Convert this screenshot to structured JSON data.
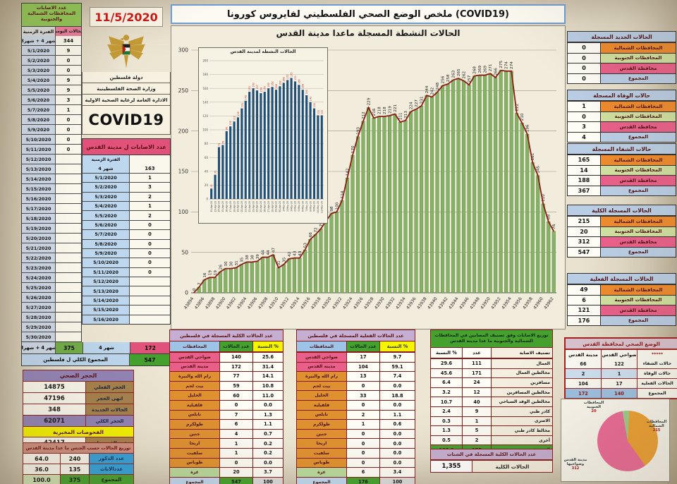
{
  "page": {
    "title": "ملخص الوضع الصحي الفلسطيني لفايروس كورونا (COVID19)",
    "date": "11/5/2020",
    "country": "دولة فلسطين",
    "ministry": "وزارة الصحة الفلسطينية",
    "directorate": "الادارة العامة لرعاية الصحية الاولية",
    "covid_label": "COVID19"
  },
  "left_daily": {
    "title": "عدد الاصابات المحافظات الشمالية والجنوبية",
    "col_period": "الفترة الزمنية",
    "col_daily": "الحالات اليومية",
    "rows": [
      {
        "d": "شهر 4 + شهر3",
        "v": "344"
      },
      {
        "d": "5/1/2020",
        "v": "9"
      },
      {
        "d": "5/2/2020",
        "v": "0"
      },
      {
        "d": "5/3/2020",
        "v": "0"
      },
      {
        "d": "5/4/2020",
        "v": "9"
      },
      {
        "d": "5/5/2020",
        "v": "9"
      },
      {
        "d": "5/6/2020",
        "v": "3"
      },
      {
        "d": "5/7/2020",
        "v": "1"
      },
      {
        "d": "5/8/2020",
        "v": "0"
      },
      {
        "d": "5/9/2020",
        "v": "0"
      },
      {
        "d": "5/10/2020",
        "v": "0"
      },
      {
        "d": "5/11/2020",
        "v": "0"
      },
      {
        "d": "5/12/2020",
        "v": ""
      },
      {
        "d": "5/13/2020",
        "v": ""
      },
      {
        "d": "5/14/2020",
        "v": ""
      },
      {
        "d": "5/15/2020",
        "v": ""
      },
      {
        "d": "5/16/2020",
        "v": ""
      },
      {
        "d": "5/17/2020",
        "v": ""
      },
      {
        "d": "5/18/2020",
        "v": ""
      },
      {
        "d": "5/19/2020",
        "v": ""
      },
      {
        "d": "5/20/2020",
        "v": ""
      },
      {
        "d": "5/21/2020",
        "v": ""
      },
      {
        "d": "5/22/2020",
        "v": ""
      },
      {
        "d": "5/23/2020",
        "v": ""
      },
      {
        "d": "5/24/2020",
        "v": ""
      },
      {
        "d": "5/25/2020",
        "v": ""
      },
      {
        "d": "5/26/2020",
        "v": ""
      },
      {
        "d": "5/27/2020",
        "v": ""
      },
      {
        "d": "5/28/2020",
        "v": ""
      },
      {
        "d": "5/29/2020",
        "v": ""
      },
      {
        "d": "5/30/2020",
        "v": ""
      }
    ]
  },
  "jerusalem_daily": {
    "title": "عدد الاصابات ل مدينة القدس",
    "col_period": "الفترة الزمنية",
    "rows": [
      {
        "d": "شهر 4",
        "v": "163"
      },
      {
        "d": "5/1/2020",
        "v": "1"
      },
      {
        "d": "5/2/2020",
        "v": "3"
      },
      {
        "d": "5/3/2020",
        "v": "2"
      },
      {
        "d": "5/4/2020",
        "v": "1"
      },
      {
        "d": "5/5/2020",
        "v": "2"
      },
      {
        "d": "5/6/2020",
        "v": "0"
      },
      {
        "d": "5/7/2020",
        "v": "0"
      },
      {
        "d": "5/8/2020",
        "v": "0"
      },
      {
        "d": "5/9/2020",
        "v": "0"
      },
      {
        "d": "5/10/2020",
        "v": "0"
      },
      {
        "d": "5/11/2020",
        "v": "0"
      },
      {
        "d": "5/12/2020",
        "v": ""
      },
      {
        "d": "5/13/2020",
        "v": ""
      },
      {
        "d": "5/14/2020",
        "v": ""
      },
      {
        "d": "5/15/2020",
        "v": ""
      },
      {
        "d": "5/16/2020",
        "v": ""
      }
    ]
  },
  "left_summary": {
    "m43_label": "شهر 4 + شهر3",
    "m43_value": "375",
    "m4_label": "شهر 4",
    "m4_value": "172",
    "total_label": "المجموع الكلي ل فلسطين",
    "total_value": "547"
  },
  "quarantine": {
    "title": "الحجر الصحي",
    "rows": [
      {
        "label": "الحجر الفعلي",
        "v": "14875",
        "purple": false
      },
      {
        "label": "انهى الحجر",
        "v": "47196",
        "purple": false
      },
      {
        "label": "الحالات الجديدة",
        "v": "348",
        "purple": false
      },
      {
        "label": "الحجر الكلي",
        "v": "62071",
        "purple": true
      }
    ],
    "lab_title": "الفحوصات المخبرية",
    "lab_label": "عدد الفحوصات",
    "lab_value": "42417"
  },
  "gender": {
    "title": "توزيع الحالات حسب الجنس ما عدا مدينة القدس",
    "rows": [
      {
        "label": "عدد الذكور",
        "n": "240",
        "pct": "64.0",
        "total": false
      },
      {
        "label": "عددالاناث",
        "n": "135",
        "pct": "36.0",
        "total": false
      },
      {
        "label": "المجموع",
        "n": "375",
        "pct": "100.0",
        "total": true
      }
    ]
  },
  "right_tables": [
    {
      "title": "الحالات الجديد المسجلة",
      "rows": [
        {
          "label": "المحافظات الشمالية",
          "v": "0",
          "c": "#ed8a2e"
        },
        {
          "label": "المحافظات الجنوبية",
          "v": "0",
          "c": "#cfe0a0"
        },
        {
          "label": "محافظة القدس",
          "v": "0",
          "c": "#e8608a"
        },
        {
          "label": "المجموع",
          "v": "0",
          "c": "#b9cde4"
        }
      ]
    },
    {
      "title": "حالات الوفاة المسجلة",
      "rows": [
        {
          "label": "المحافظات الشمالية",
          "v": "1",
          "c": "#ed8a2e"
        },
        {
          "label": "المحافظات الجنوبية",
          "v": "0",
          "c": "#cfe0a0"
        },
        {
          "label": "محافظة القدس",
          "v": "3",
          "c": "#e8608a"
        },
        {
          "label": "المجموع",
          "v": "4",
          "c": "#b9cde4"
        }
      ]
    },
    {
      "title": "حالات الشفاء المسجلة",
      "rows": [
        {
          "label": "المحافظات الشمالية",
          "v": "165",
          "c": "#ed8a2e"
        },
        {
          "label": "المحافظات الجنوبية",
          "v": "14",
          "c": "#cfe0a0"
        },
        {
          "label": "محافظة القدس",
          "v": "188",
          "c": "#e8608a"
        },
        {
          "label": "المجموع",
          "v": "367",
          "c": "#b9cde4"
        }
      ]
    },
    {
      "title": "الحالات المسجلة الكلية",
      "rows": [
        {
          "label": "المحافظات الشمالية",
          "v": "215",
          "c": "#ed8a2e"
        },
        {
          "label": "المحافظات الجنوبية",
          "v": "20",
          "c": "#cfe0a0"
        },
        {
          "label": "محافظة القدس",
          "v": "312",
          "c": "#e8608a"
        },
        {
          "label": "المجموع",
          "v": "547",
          "c": "#b9cde4"
        }
      ]
    },
    {
      "title": "الحالات المسجلة الفعلية",
      "rows": [
        {
          "label": "المحافظات الشمالية",
          "v": "49",
          "c": "#ed8a2e"
        },
        {
          "label": "المحافظات الجنوبية",
          "v": "6",
          "c": "#cfe0a0"
        },
        {
          "label": "محافظة القدس",
          "v": "121",
          "c": "#e8608a"
        },
        {
          "label": "المجموع",
          "v": "176",
          "c": "#b9cde4"
        }
      ]
    }
  ],
  "jerusalem_status": {
    "title": "الوضع الصحي لمحافظة القدس",
    "col_stars": "*****",
    "col_suburbs": "ضواحي القدس",
    "col_city": "مدينة القدس",
    "rows": [
      {
        "label": "حالات الشفاء",
        "suburbs": "122",
        "city": "66",
        "bg": "#fdfcf5"
      },
      {
        "label": "حالات الوفاة",
        "suburbs": "1",
        "city": "2",
        "bg": "#cfe2f3"
      },
      {
        "label": "الحالات الفعلية",
        "suburbs": "17",
        "city": "104",
        "bg": "#fdfcf5"
      },
      {
        "label": "المجموع",
        "suburbs": "140",
        "city": "172",
        "bg": "#9dc3e6"
      }
    ]
  },
  "bottom_total_table": {
    "title": "عدد الحالات الكلية المسجلة في فلسطين",
    "col_gov": "المحافظات",
    "col_n": "عدد الحالات",
    "col_pct": "النسبة %",
    "rows": [
      {
        "label": "ضواحي القدس",
        "n": "140",
        "pct": "25.6",
        "c": "pink"
      },
      {
        "label": "مدينة القدس",
        "n": "172",
        "pct": "31.4",
        "c": "pink"
      },
      {
        "label": "رام الله والبيرة",
        "n": "77",
        "pct": "14.1",
        "c": "orange"
      },
      {
        "label": "بيت لحم",
        "n": "59",
        "pct": "10.8",
        "c": "orange"
      },
      {
        "label": "الخليل",
        "n": "60",
        "pct": "11.0",
        "c": "orange"
      },
      {
        "label": "قلقيلية",
        "n": "0",
        "pct": "0.0",
        "c": "orange"
      },
      {
        "label": "نابلس",
        "n": "7",
        "pct": "1.3",
        "c": "orange"
      },
      {
        "label": "طولكرم",
        "n": "6",
        "pct": "1.1",
        "c": "orange"
      },
      {
        "label": "جنين",
        "n": "4",
        "pct": "0.7",
        "c": "orange"
      },
      {
        "label": "اريحا",
        "n": "1",
        "pct": "0.2",
        "c": "orange"
      },
      {
        "label": "سلفيت",
        "n": "1",
        "pct": "0.2",
        "c": "orange"
      },
      {
        "label": "طوباس",
        "n": "0",
        "pct": "0.0",
        "c": "orange"
      },
      {
        "label": "غزة",
        "n": "20",
        "pct": "3.7",
        "c": "lgreen"
      }
    ],
    "total_label": "المجموع",
    "total_n": "547",
    "total_pct": "100"
  },
  "bottom_active_table": {
    "title": "عدد الحالات الفعلية المسجلة في فلسطين",
    "col_gov": "المحافظات",
    "col_n": "عدد الحالات",
    "col_pct": "النسبة %",
    "rows": [
      {
        "label": "ضواحي القدس",
        "n": "17",
        "pct": "9.7",
        "c": "pink"
      },
      {
        "label": "مدينة القدس",
        "n": "104",
        "pct": "59.1",
        "c": "pink"
      },
      {
        "label": "رام الله والبيرة",
        "n": "13",
        "pct": "7.4",
        "c": "orange"
      },
      {
        "label": "بيت لحم",
        "n": "0",
        "pct": "0.0",
        "c": "orange"
      },
      {
        "label": "الخليل",
        "n": "33",
        "pct": "18.8",
        "c": "orange"
      },
      {
        "label": "قلقيلية",
        "n": "0",
        "pct": "0.0",
        "c": "orange"
      },
      {
        "label": "نابلس",
        "n": "2",
        "pct": "1.1",
        "c": "orange"
      },
      {
        "label": "طولكرم",
        "n": "1",
        "pct": "0.6",
        "c": "orange"
      },
      {
        "label": "جنين",
        "n": "0",
        "pct": "0.0",
        "c": "orange"
      },
      {
        "label": "اريحا",
        "n": "0",
        "pct": "0.0",
        "c": "orange"
      },
      {
        "label": "سلفيت",
        "n": "0",
        "pct": "0.0",
        "c": "orange"
      },
      {
        "label": "طوباس",
        "n": "0",
        "pct": "0.0",
        "c": "orange"
      },
      {
        "label": "غزة",
        "n": "6",
        "pct": "3.4",
        "c": "lgreen"
      }
    ],
    "total_label": "المجموع",
    "total_n": "176",
    "total_pct": "100"
  },
  "classification_table": {
    "title": "توزيع الاصابات وفق تصنيف المصابين في المحافظات الشمالية والجنوبية ما عدا مدينة القدس",
    "col_type": "تصنيف الاصابة",
    "col_n": "عدد",
    "col_pct": "النسبة %",
    "rows": [
      {
        "label": "العمال",
        "n": "111",
        "pct": "29.6"
      },
      {
        "label": "مخالطين العمال",
        "n": "171",
        "pct": "45.6"
      },
      {
        "label": "مسافرين",
        "n": "24",
        "pct": "6.4"
      },
      {
        "label": "مخالطين المسافرين",
        "n": "12",
        "pct": "3.2"
      },
      {
        "label": "مخالطين الوفد السياحي",
        "n": "40",
        "pct": "10.7"
      },
      {
        "label": "كادر طبي",
        "n": "9",
        "pct": "2.4"
      },
      {
        "label": "الاسرى",
        "n": "1",
        "pct": "0.3"
      },
      {
        "label": "مخالط كادر طبي",
        "n": "5",
        "pct": "1.3"
      },
      {
        "label": "أخرى",
        "n": "2",
        "pct": "0.5"
      }
    ],
    "total_label": "المجموع",
    "total_n": "375",
    "total_pct": "100.0"
  },
  "diaspora": {
    "title": "عدد الحالات الكلية المسجلة في الشتات",
    "label": "الحالات الكلية",
    "value": "1,355"
  },
  "chart_data": [
    {
      "type": "bar",
      "name": "active-cases-excluding-jerusalem",
      "title": "الحالات النشطة المسجلة ماعدا مدينة القدس",
      "x_start_serial": 43894,
      "x_end_serial": 43962,
      "xtick_step": 2,
      "ylim": [
        0,
        300
      ],
      "ytick_step": 50,
      "grid": true,
      "bar_color": "#85b264",
      "line_color": "#8b1f14",
      "values": [
        0,
        7,
        16,
        19,
        19,
        26,
        30,
        30,
        31,
        35,
        38,
        38,
        39,
        44,
        44,
        47,
        31,
        35,
        42,
        43,
        43,
        53,
        66,
        72,
        79,
        89,
        98,
        100,
        114,
        142,
        170,
        193,
        212,
        229,
        216,
        218,
        218,
        219,
        221,
        211,
        213,
        224,
        227,
        231,
        244,
        242,
        248,
        256,
        258,
        263,
        265,
        262,
        257,
        268,
        269,
        269,
        271,
        266,
        275,
        274,
        274,
        222,
        210,
        196,
        161,
        145,
        110,
        88,
        76
      ]
    },
    {
      "type": "bar",
      "name": "active-cases-jerusalem-city",
      "title": "الحالات النشطة لمدينة القدس",
      "ylim": [
        0,
        200
      ],
      "ytick_step": 20,
      "bar_color": "#1f4e79",
      "values_approximate": true,
      "categories": [
        "12-Apr-20",
        "13-Apr-20",
        "14-Apr-20",
        "15-Apr-20",
        "16-Apr-20",
        "17-Apr-20",
        "18-Apr-20",
        "19-Apr-20",
        "20-Apr-20",
        "21-Apr-20",
        "22-Apr-20",
        "23-Apr-20",
        "24-Apr-20",
        "25-Apr-20",
        "26-Apr-20",
        "27-Apr-20",
        "28-Apr-20",
        "29-Apr-20",
        "30-Apr-20",
        "1-May-20",
        "2-May-20",
        "3-May-20",
        "4-May-20",
        "5-May-20",
        "6-May-20",
        "7-May-20",
        "8-May-20",
        "9-May-20",
        "10-May-20",
        "11-May-20"
      ],
      "values": [
        15,
        35,
        75,
        78,
        98,
        105,
        112,
        118,
        131,
        142,
        155,
        160,
        157,
        153,
        155,
        160,
        162,
        158,
        163,
        168,
        172,
        175,
        170,
        165,
        158,
        150,
        140,
        131,
        121,
        121
      ]
    },
    {
      "type": "pie",
      "name": "total-cases-by-region",
      "slices": [
        {
          "label": "المحافظات الشمالية",
          "value": 215,
          "color": "#f0a232"
        },
        {
          "label": "المحافظات الجنوبية",
          "value": 20,
          "color": "#9fce8e"
        },
        {
          "label": "مدينة القدس وضواحيها",
          "value": 312,
          "color": "#ee6a9a"
        }
      ]
    }
  ]
}
